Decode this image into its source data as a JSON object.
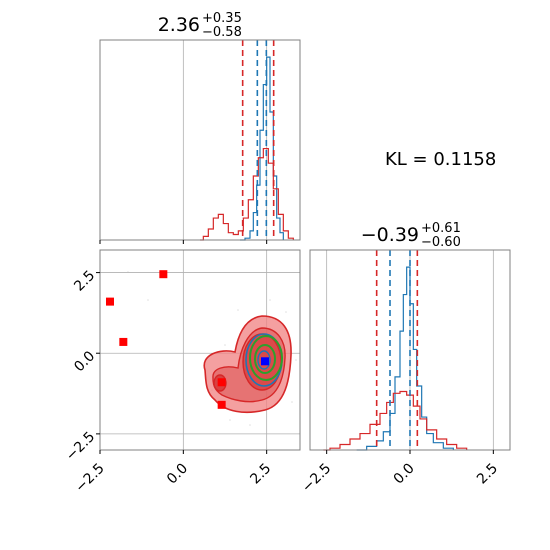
{
  "chart_data": [
    {
      "type": "histogram",
      "panel": "top-left",
      "title": {
        "main": "2.36",
        "plus": "+0.35",
        "minus": "−0.58"
      },
      "xlim": [
        -2.5,
        3.5
      ],
      "xticks": [
        -2.5,
        0.0,
        2.5
      ],
      "series": [
        {
          "color": "#1f77b4",
          "step": [
            [
              1.7,
              0.0
            ],
            [
              1.85,
              0.01
            ],
            [
              2.0,
              0.05
            ],
            [
              2.1,
              0.15
            ],
            [
              2.2,
              0.3
            ],
            [
              2.3,
              0.6
            ],
            [
              2.4,
              0.85
            ],
            [
              2.5,
              1.0
            ],
            [
              2.6,
              0.7
            ],
            [
              2.7,
              0.35
            ],
            [
              2.8,
              0.12
            ],
            [
              2.9,
              0.04
            ],
            [
              3.0,
              0.0
            ]
          ]
        },
        {
          "color": "#d62728",
          "step": [
            [
              0.5,
              0.0
            ],
            [
              0.6,
              0.02
            ],
            [
              0.75,
              0.06
            ],
            [
              0.9,
              0.12
            ],
            [
              1.05,
              0.14
            ],
            [
              1.2,
              0.09
            ],
            [
              1.35,
              0.04
            ],
            [
              1.5,
              0.03
            ],
            [
              1.65,
              0.05
            ],
            [
              1.8,
              0.12
            ],
            [
              1.95,
              0.22
            ],
            [
              2.1,
              0.35
            ],
            [
              2.25,
              0.45
            ],
            [
              2.4,
              0.5
            ],
            [
              2.55,
              0.42
            ],
            [
              2.7,
              0.28
            ],
            [
              2.85,
              0.14
            ],
            [
              3.0,
              0.05
            ],
            [
              3.15,
              0.01
            ],
            [
              3.3,
              0.0
            ]
          ]
        }
      ],
      "vlines": [
        {
          "x": 1.78,
          "color": "#d62728"
        },
        {
          "x": 2.71,
          "color": "#d62728"
        },
        {
          "x": 2.22,
          "color": "#1f77b4"
        },
        {
          "x": 2.49,
          "color": "#1f77b4"
        }
      ]
    },
    {
      "type": "scatter",
      "panel": "bottom-left",
      "xlim": [
        -2.5,
        3.5
      ],
      "ylim": [
        -3.0,
        3.2
      ],
      "xticks": [
        -2.5,
        0.0,
        2.5
      ],
      "yticks": [
        -2.5,
        0.0,
        2.5
      ],
      "markers": [
        {
          "x": -2.2,
          "y": 1.6,
          "color": "#ff0000"
        },
        {
          "x": -1.8,
          "y": 0.35,
          "color": "#ff0000"
        },
        {
          "x": -0.6,
          "y": 2.45,
          "color": "#ff0000"
        },
        {
          "x": 1.15,
          "y": -1.6,
          "color": "#ff0000"
        },
        {
          "x": 1.15,
          "y": -0.9,
          "color": "#ff0000"
        },
        {
          "x": 2.45,
          "y": -0.25,
          "color": "#0000ff"
        }
      ]
    },
    {
      "type": "histogram",
      "panel": "bottom-right",
      "title": {
        "main": "−0.39",
        "plus": "+0.61",
        "minus": "−0.60"
      },
      "xlim": [
        -3.0,
        3.0
      ],
      "xticks": [
        -2.5,
        0.0,
        2.5
      ],
      "series": [
        {
          "color": "#1f77b4",
          "step": [
            [
              -1.6,
              0.0
            ],
            [
              -1.3,
              0.02
            ],
            [
              -1.0,
              0.05
            ],
            [
              -0.8,
              0.1
            ],
            [
              -0.6,
              0.2
            ],
            [
              -0.45,
              0.4
            ],
            [
              -0.3,
              0.65
            ],
            [
              -0.2,
              0.85
            ],
            [
              -0.1,
              1.0
            ],
            [
              0.0,
              0.8
            ],
            [
              0.1,
              0.55
            ],
            [
              0.2,
              0.35
            ],
            [
              0.35,
              0.18
            ],
            [
              0.5,
              0.09
            ],
            [
              0.7,
              0.04
            ],
            [
              1.0,
              0.01
            ],
            [
              1.3,
              0.0
            ]
          ]
        },
        {
          "color": "#d62728",
          "step": [
            [
              -2.6,
              0.0
            ],
            [
              -2.4,
              0.01
            ],
            [
              -2.1,
              0.03
            ],
            [
              -1.8,
              0.06
            ],
            [
              -1.5,
              0.09
            ],
            [
              -1.2,
              0.14
            ],
            [
              -0.9,
              0.2
            ],
            [
              -0.7,
              0.26
            ],
            [
              -0.5,
              0.31
            ],
            [
              -0.3,
              0.32
            ],
            [
              -0.1,
              0.3
            ],
            [
              0.1,
              0.24
            ],
            [
              0.3,
              0.17
            ],
            [
              0.5,
              0.11
            ],
            [
              0.8,
              0.06
            ],
            [
              1.1,
              0.03
            ],
            [
              1.4,
              0.01
            ],
            [
              1.7,
              0.0
            ]
          ]
        }
      ],
      "vlines": [
        {
          "x": -1.0,
          "color": "#d62728"
        },
        {
          "x": 0.22,
          "color": "#d62728"
        },
        {
          "x": -0.6,
          "color": "#1f77b4"
        },
        {
          "x": 0.0,
          "color": "#1f77b4"
        }
      ]
    }
  ],
  "annotation": {
    "kl_label": "KL = 0.1158"
  }
}
